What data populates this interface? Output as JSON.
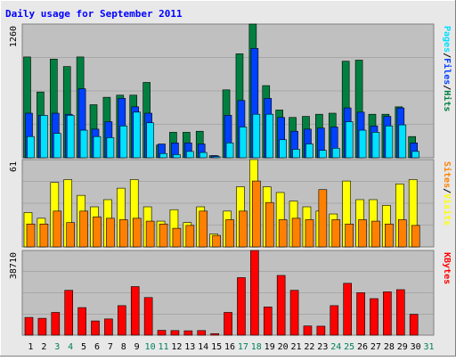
{
  "chart_data": {
    "type": "bar",
    "title": "Daily usage for September 2011",
    "colors": {
      "background": "#e8e8e8",
      "panel": "#c0c0c0",
      "title": "#0000ff",
      "hits": "#008040",
      "files": "#0040ff",
      "pages": "#00e0ff",
      "visits": "#ffff00",
      "sites": "#ff8000",
      "kbytes": "#ff0000",
      "weekend_label": "#00805c",
      "axis_label": "#000000"
    },
    "categories": [
      "1",
      "2",
      "3",
      "4",
      "5",
      "6",
      "7",
      "8",
      "9",
      "10",
      "11",
      "12",
      "13",
      "14",
      "15",
      "16",
      "17",
      "18",
      "19",
      "20",
      "21",
      "22",
      "23",
      "24",
      "25",
      "26",
      "27",
      "28",
      "29",
      "30",
      "31"
    ],
    "weekend_days": [
      "3",
      "4",
      "10",
      "11",
      "17",
      "18",
      "24",
      "25",
      "31"
    ],
    "panels": [
      {
        "id": "hits-files-pages",
        "max_label": "1260",
        "ymax": 1260,
        "legend": [
          {
            "text": "Pages",
            "color": "#00e0ff"
          },
          {
            "text": "/",
            "color": "#000000"
          },
          {
            "text": "Files",
            "color": "#0040ff"
          },
          {
            "text": "/",
            "color": "#000000"
          },
          {
            "text": "Hits",
            "color": "#008040"
          }
        ],
        "series": [
          {
            "name": "Hits",
            "color": "#008040",
            "values": [
              950,
              620,
              930,
              860,
              950,
              500,
              570,
              590,
              590,
              710,
              120,
              240,
              240,
              250,
              20,
              640,
              980,
              1260,
              680,
              450,
              380,
              390,
              410,
              420,
              910,
              920,
              410,
              410,
              480,
              200,
              0
            ]
          },
          {
            "name": "Files",
            "color": "#0040ff",
            "values": [
              420,
              400,
              420,
              410,
              650,
              270,
              340,
              560,
              480,
              420,
              130,
              140,
              140,
              130,
              20,
              400,
              540,
              1030,
              560,
              380,
              250,
              270,
              280,
              290,
              470,
              430,
              300,
              390,
              470,
              140,
              0
            ]
          },
          {
            "name": "Pages",
            "color": "#00e0ff",
            "values": [
              200,
              400,
              230,
              400,
              260,
              200,
              190,
              300,
              430,
              330,
              40,
              30,
              60,
              50,
              10,
              140,
              290,
              410,
              410,
              170,
              80,
              130,
              70,
              90,
              340,
              260,
              240,
              300,
              310,
              60,
              0
            ]
          }
        ]
      },
      {
        "id": "visits-sites",
        "max_label": "61",
        "ymax": 61,
        "legend": [
          {
            "text": "Sites",
            "color": "#ff8000"
          },
          {
            "text": "/",
            "color": "#000000"
          },
          {
            "text": "Visits",
            "color": "#ffff00"
          }
        ],
        "series": [
          {
            "name": "Visits",
            "color": "#ffff00",
            "values": [
              24,
              20,
              45,
              47,
              36,
              28,
              33,
              41,
              47,
              28,
              18,
              26,
              17,
              28,
              9,
              25,
              42,
              61,
              42,
              38,
              32,
              28,
              25,
              23,
              46,
              33,
              33,
              29,
              44,
              47,
              0
            ]
          },
          {
            "name": "Sites",
            "color": "#ff8000",
            "values": [
              16,
              16,
              25,
              17,
              25,
              21,
              20,
              19,
              20,
              18,
              16,
              13,
              15,
              25,
              8,
              19,
              25,
              46,
              31,
              19,
              20,
              19,
              40,
              19,
              16,
              19,
              18,
              16,
              19,
              15,
              0
            ]
          }
        ]
      },
      {
        "id": "kbytes",
        "max_label": "38710",
        "ymax": 38710,
        "legend": [
          {
            "text": "KBytes",
            "color": "#ff0000"
          }
        ],
        "series": [
          {
            "name": "KBytes",
            "color": "#ff0000",
            "values": [
              8100,
              7700,
              10400,
              20500,
              12600,
              6500,
              7400,
              13500,
              22200,
              17200,
              2200,
              2100,
              2000,
              2100,
              700,
              10400,
              26300,
              38710,
              12900,
              27300,
              20500,
              4200,
              4100,
              13500,
              23700,
              19400,
              16700,
              19800,
              20800,
              9500,
              0
            ]
          }
        ]
      }
    ]
  }
}
